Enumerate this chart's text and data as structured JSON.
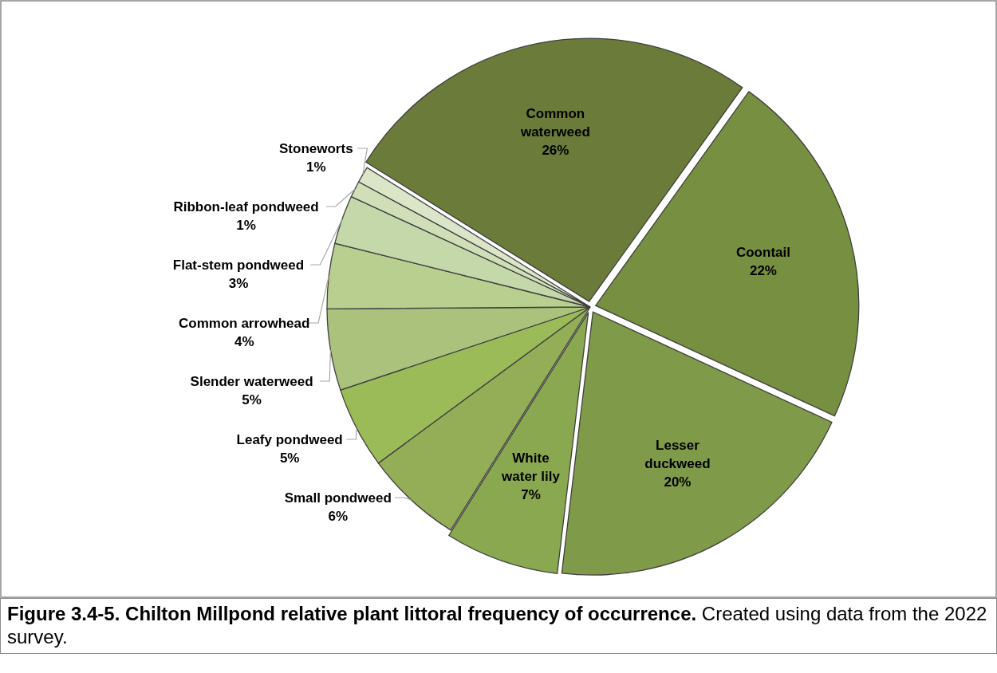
{
  "chart_data": {
    "type": "pie",
    "title": "Figure 3.4-5.  Chilton Millpond relative plant littoral frequency of occurrence.",
    "annotations": [
      "Created using data from the 2022 survey."
    ],
    "categories": [
      "Common waterweed",
      "Coontail",
      "Lesser duckweed",
      "White water lily",
      "Small pondweed",
      "Leafy pondweed",
      "Slender waterweed",
      "Common arrowhead",
      "Flat-stem pondweed",
      "Ribbon-leaf pondweed",
      "Stoneworts"
    ],
    "values": [
      26,
      22,
      20,
      7,
      6,
      5,
      5,
      4,
      3,
      1,
      1
    ],
    "value_labels": [
      "26%",
      "22%",
      "20%",
      "7%",
      "6%",
      "5%",
      "5%",
      "4%",
      "3%",
      "1%",
      "1%"
    ],
    "colors": [
      "#6b7b3a",
      "#768f40",
      "#7f9a48",
      "#8aa84f",
      "#93ae57",
      "#9bbb59",
      "#aac27b",
      "#b8cf8f",
      "#c5d8a9",
      "#d0dfb8",
      "#dbe6c8"
    ]
  }
}
